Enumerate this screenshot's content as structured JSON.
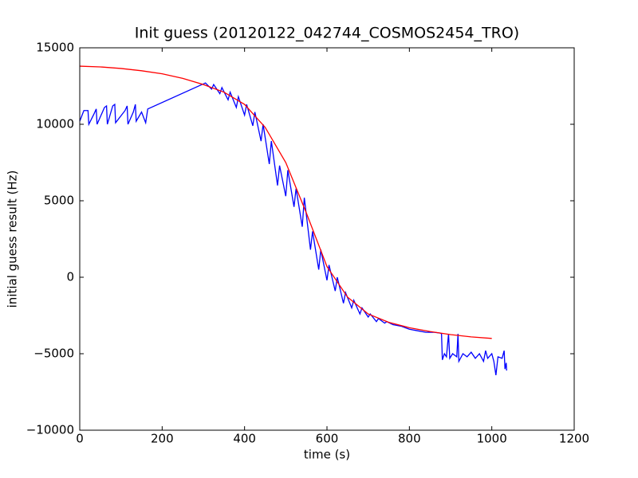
{
  "chart_data": {
    "type": "line",
    "title": "Init guess (20120122_042744_COSMOS2454_TRO)",
    "xlabel": "time (s)",
    "ylabel": "initial guess result (Hz)",
    "xlim": [
      0,
      1200
    ],
    "xticks": [
      0,
      200,
      400,
      600,
      800,
      1000,
      1200
    ],
    "ylim": [
      -10000,
      15000
    ],
    "yticks": [
      {
        "value": -10000,
        "label": "−10000"
      },
      {
        "value": -5000,
        "label": "−5000"
      },
      0,
      5000,
      10000,
      15000
    ],
    "grid": false,
    "series": [
      {
        "color": "#0000ff",
        "x": [
          0,
          10,
          20,
          22,
          35,
          40,
          42,
          60,
          65,
          67,
          80,
          85,
          87,
          110,
          115,
          117,
          130,
          135,
          137,
          150,
          160,
          165,
          305,
          320,
          325,
          340,
          345,
          360,
          365,
          380,
          385,
          400,
          405,
          420,
          425,
          440,
          445,
          460,
          465,
          480,
          485,
          500,
          505,
          520,
          525,
          540,
          545,
          560,
          565,
          580,
          585,
          600,
          605,
          620,
          625,
          640,
          645,
          660,
          665,
          680,
          685,
          700,
          705,
          720,
          725,
          740,
          745,
          760,
          780,
          800,
          820,
          840,
          860,
          875,
          878,
          880,
          885,
          890,
          895,
          898,
          905,
          915,
          918,
          920,
          930,
          940,
          950,
          960,
          970,
          980,
          985,
          990,
          1000,
          1005,
          1010,
          1015,
          1025,
          1030,
          1032,
          1035,
          1036
        ],
        "values": [
          10200,
          10900,
          10900,
          10000,
          10700,
          11000,
          10000,
          11100,
          11200,
          10000,
          11200,
          11300,
          10100,
          10900,
          11200,
          10000,
          10800,
          11300,
          10200,
          10800,
          10100,
          11000,
          12700,
          12300,
          12600,
          12000,
          12400,
          11600,
          12100,
          11100,
          11800,
          10600,
          11300,
          9900,
          10800,
          8900,
          10000,
          7400,
          8900,
          6000,
          7300,
          5300,
          7000,
          4600,
          5800,
          3300,
          5200,
          1800,
          3000,
          500,
          1800,
          -200,
          800,
          -900,
          0,
          -1700,
          -1000,
          -2000,
          -1500,
          -2400,
          -2000,
          -2600,
          -2400,
          -2900,
          -2700,
          -3000,
          -2900,
          -3100,
          -3200,
          -3400,
          -3500,
          -3600,
          -3600,
          -3650,
          -3700,
          -5400,
          -5000,
          -5200,
          -3700,
          -5300,
          -5000,
          -5200,
          -3700,
          -5500,
          -5000,
          -5200,
          -4900,
          -5300,
          -5000,
          -5500,
          -4800,
          -5300,
          -5000,
          -5500,
          -6400,
          -5200,
          -5300,
          -4800,
          -6000,
          -5600,
          -6100
        ]
      },
      {
        "color": "#ff0000",
        "x": [
          0,
          50,
          100,
          150,
          200,
          250,
          300,
          350,
          400,
          450,
          500,
          550,
          600,
          650,
          700,
          750,
          800,
          850,
          900,
          950,
          1000
        ],
        "values": [
          13800,
          13750,
          13650,
          13500,
          13300,
          13000,
          12600,
          12100,
          11300,
          9800,
          7500,
          4200,
          700,
          -1300,
          -2400,
          -2950,
          -3300,
          -3550,
          -3750,
          -3900,
          -4000
        ]
      }
    ]
  }
}
